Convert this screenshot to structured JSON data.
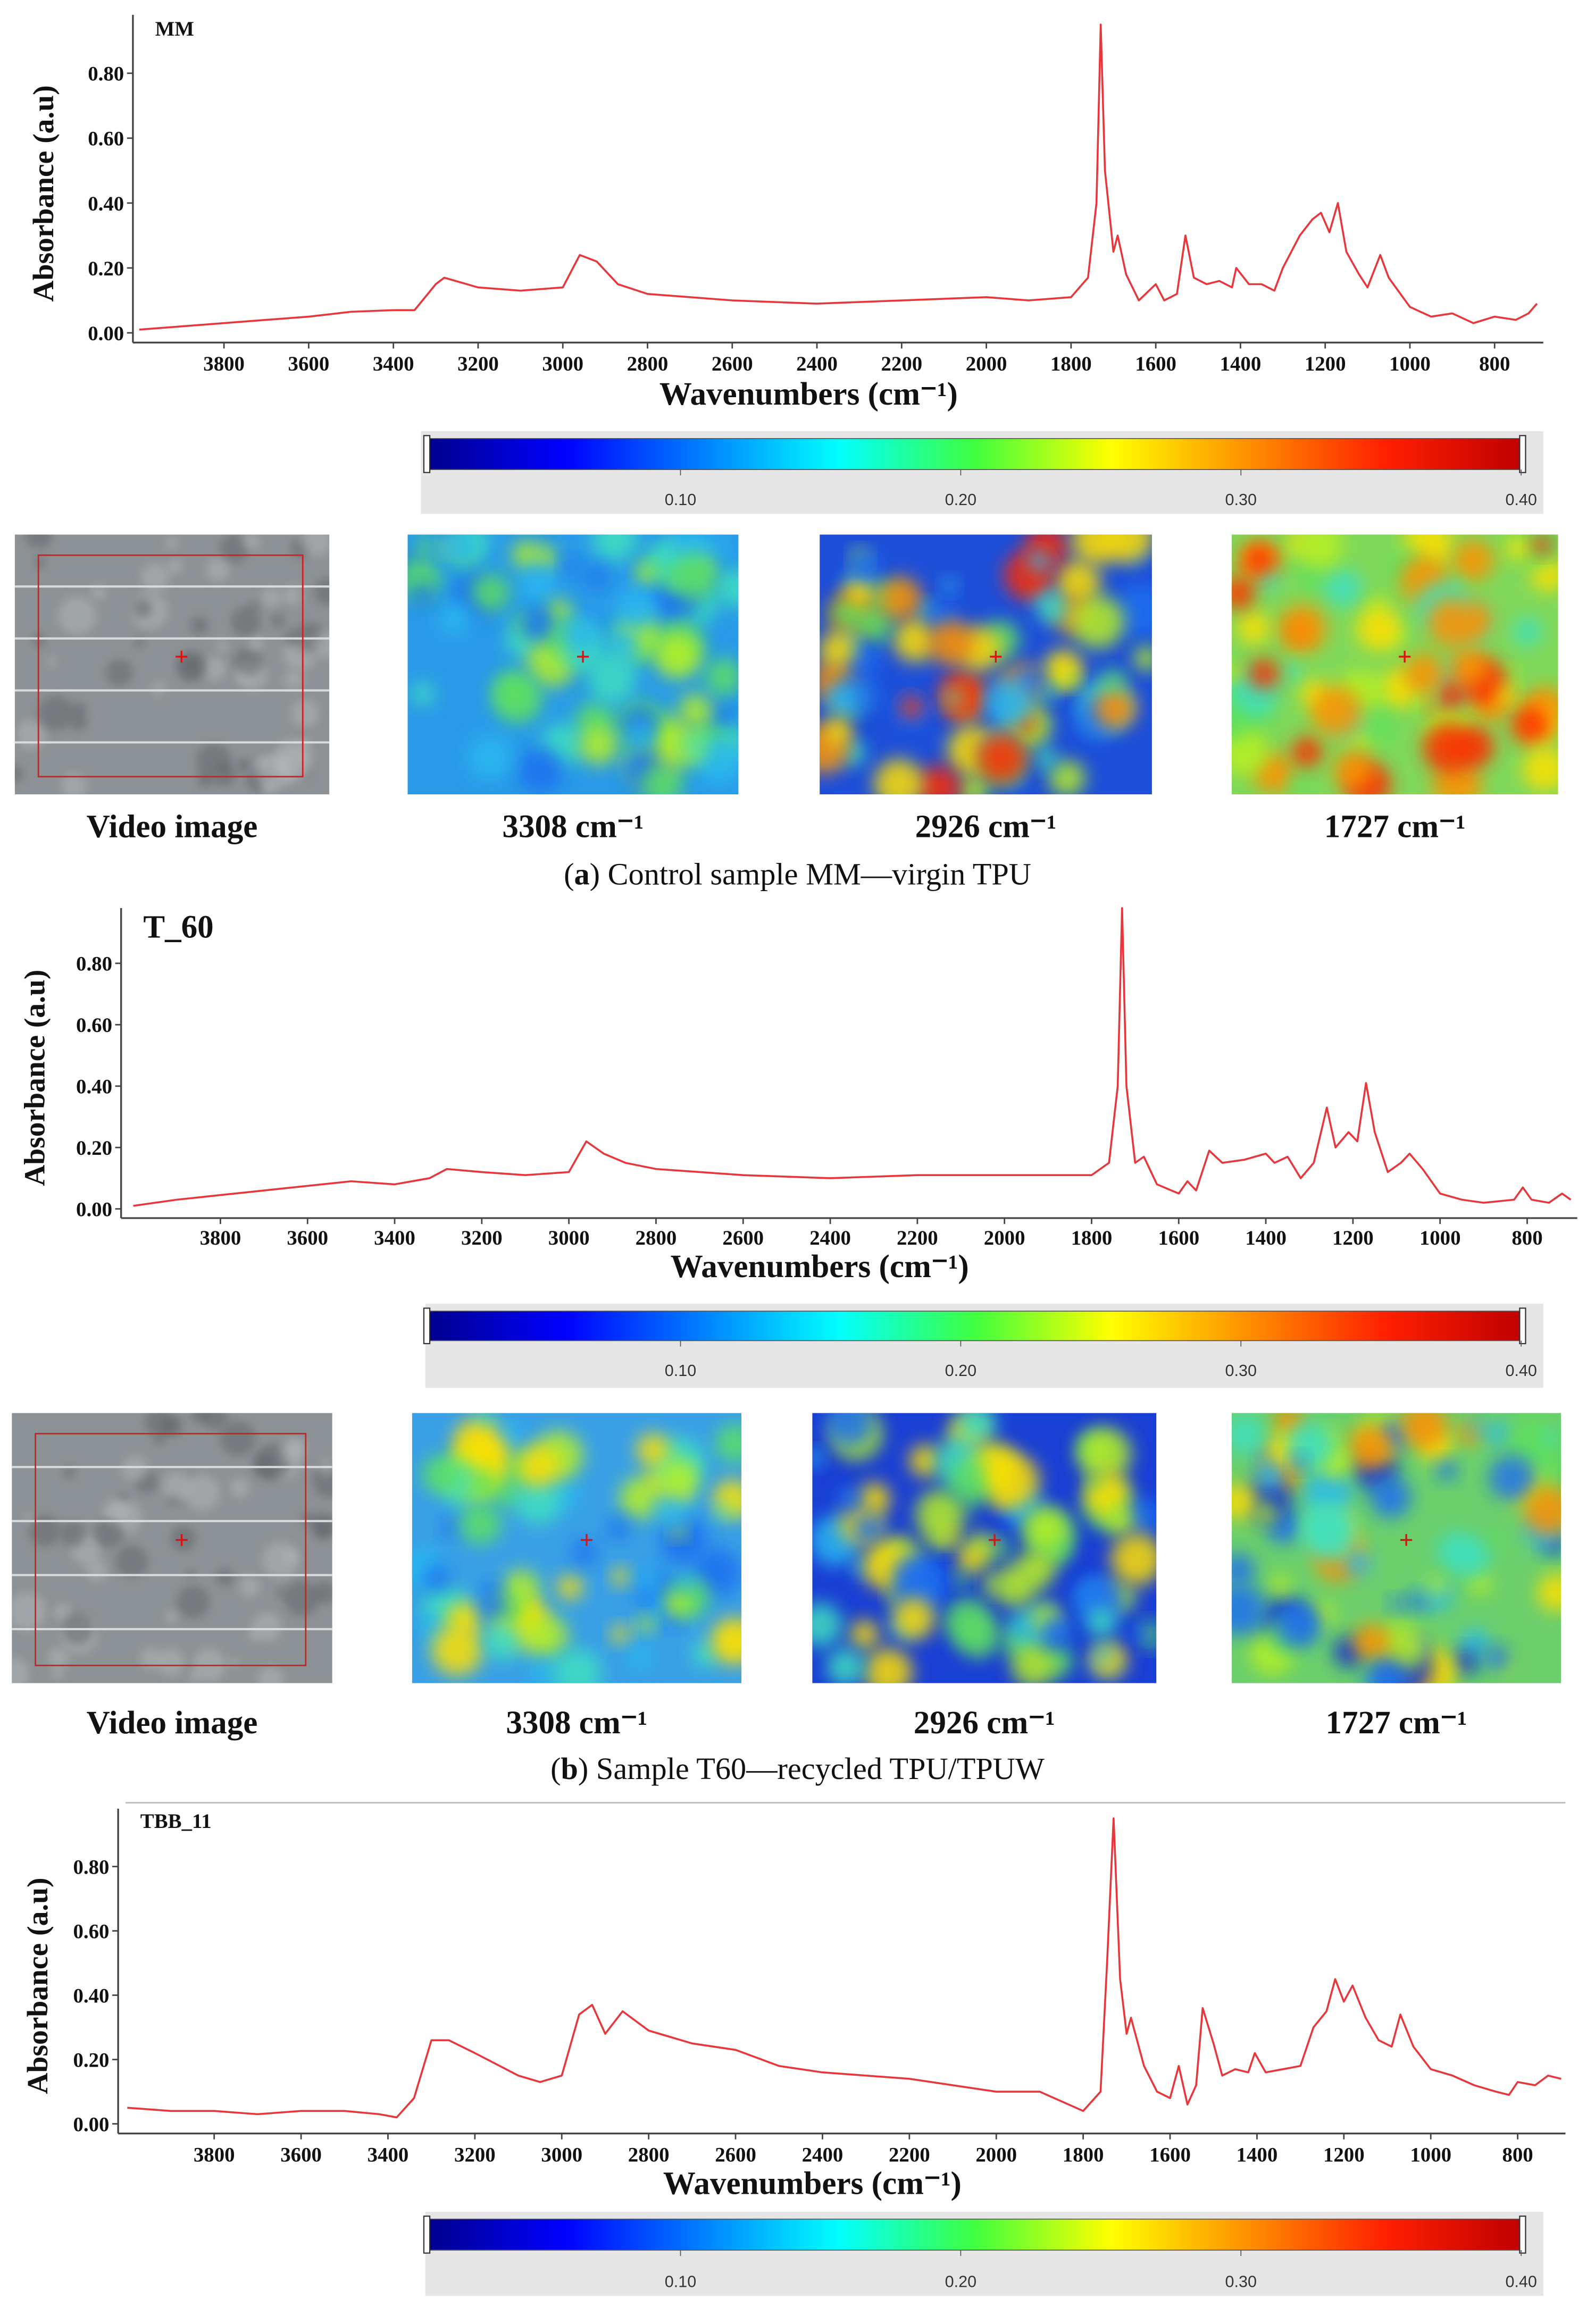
{
  "chart_data": [
    {
      "type": "line",
      "title": "MM",
      "ylabel": "Absorbance (a.u)",
      "xlabel": "Wavenumbers (cm⁻¹)",
      "xlim": [
        4015,
        685
      ],
      "ylim": [
        -0.03,
        0.98
      ],
      "xticks": [
        3800,
        3600,
        3400,
        3200,
        3000,
        2800,
        2600,
        2400,
        2200,
        2000,
        1800,
        1600,
        1400,
        1200,
        1000,
        800
      ],
      "yticks": [
        {
          "value": 0,
          "label": "0.00"
        },
        {
          "value": 0.2,
          "label": "0.20"
        },
        {
          "value": 0.4,
          "label": "0.40"
        },
        {
          "value": 0.6,
          "label": "0.60"
        },
        {
          "value": 0.8,
          "label": "0.80"
        }
      ],
      "series": [
        {
          "color": "#e8363b",
          "x": [
            4000,
            3900,
            3800,
            3700,
            3600,
            3500,
            3400,
            3350,
            3300,
            3280,
            3200,
            3100,
            3000,
            2960,
            2920,
            2870,
            2800,
            2600,
            2400,
            2200,
            2000,
            1900,
            1800,
            1760,
            1740,
            1730,
            1720,
            1700,
            1690,
            1670,
            1640,
            1600,
            1580,
            1550,
            1530,
            1510,
            1480,
            1450,
            1420,
            1410,
            1380,
            1350,
            1320,
            1300,
            1260,
            1230,
            1210,
            1190,
            1170,
            1150,
            1120,
            1100,
            1070,
            1050,
            1000,
            950,
            900,
            850,
            800,
            750,
            720,
            700
          ],
          "values": [
            0.01,
            0.02,
            0.03,
            0.04,
            0.05,
            0.065,
            0.07,
            0.07,
            0.15,
            0.17,
            0.14,
            0.13,
            0.14,
            0.24,
            0.22,
            0.15,
            0.12,
            0.1,
            0.09,
            0.1,
            0.11,
            0.1,
            0.11,
            0.17,
            0.4,
            0.95,
            0.5,
            0.25,
            0.3,
            0.18,
            0.1,
            0.15,
            0.1,
            0.12,
            0.3,
            0.17,
            0.15,
            0.16,
            0.14,
            0.2,
            0.15,
            0.15,
            0.13,
            0.2,
            0.3,
            0.35,
            0.37,
            0.31,
            0.4,
            0.25,
            0.18,
            0.14,
            0.24,
            0.17,
            0.08,
            0.05,
            0.06,
            0.03,
            0.05,
            0.04,
            0.06,
            0.09
          ]
        }
      ],
      "colorbar": {
        "lim": [
          0.01,
          0.4
        ],
        "ticks": [
          {
            "value": 0.1,
            "label": "0.10"
          },
          {
            "value": 0.2,
            "label": "0.20"
          },
          {
            "value": 0.3,
            "label": "0.30"
          },
          {
            "value": 0.4,
            "label": "0.40"
          }
        ]
      },
      "panels": {
        "captions": [
          "Video image",
          "3308 cm⁻¹",
          "2926 cm⁻¹",
          "1727 cm⁻¹"
        ],
        "subcaption": [
          "(",
          "a",
          ") Control sample MM—virgin TPU"
        ]
      }
    },
    {
      "type": "line",
      "title": "T_60",
      "ylabel": "Absorbance (a.u)",
      "xlabel": "Wavenumbers (cm⁻¹)",
      "xlim": [
        4028,
        685
      ],
      "ylim": [
        -0.03,
        0.98
      ],
      "xticks": [
        3800,
        3600,
        3400,
        3200,
        3000,
        2800,
        2600,
        2400,
        2200,
        2000,
        1800,
        1600,
        1400,
        1200,
        1000,
        800
      ],
      "yticks": [
        {
          "value": 0,
          "label": "0.00"
        },
        {
          "value": 0.2,
          "label": "0.20"
        },
        {
          "value": 0.4,
          "label": "0.40"
        },
        {
          "value": 0.6,
          "label": "0.60"
        },
        {
          "value": 0.8,
          "label": "0.80"
        }
      ],
      "series": [
        {
          "color": "#e8363b",
          "x": [
            4000,
            3900,
            3700,
            3500,
            3400,
            3320,
            3280,
            3200,
            3100,
            3000,
            2960,
            2920,
            2870,
            2800,
            2600,
            2400,
            2200,
            2000,
            1800,
            1760,
            1740,
            1730,
            1720,
            1700,
            1680,
            1650,
            1600,
            1580,
            1560,
            1530,
            1500,
            1450,
            1400,
            1380,
            1350,
            1320,
            1290,
            1260,
            1240,
            1210,
            1190,
            1170,
            1150,
            1120,
            1090,
            1070,
            1040,
            1000,
            950,
            900,
            830,
            810,
            790,
            750,
            720,
            700
          ],
          "values": [
            0.01,
            0.03,
            0.06,
            0.09,
            0.08,
            0.1,
            0.13,
            0.12,
            0.11,
            0.12,
            0.22,
            0.18,
            0.15,
            0.13,
            0.11,
            0.1,
            0.11,
            0.11,
            0.11,
            0.15,
            0.4,
            0.98,
            0.4,
            0.15,
            0.17,
            0.08,
            0.05,
            0.09,
            0.06,
            0.19,
            0.15,
            0.16,
            0.18,
            0.15,
            0.17,
            0.1,
            0.15,
            0.33,
            0.2,
            0.25,
            0.22,
            0.41,
            0.25,
            0.12,
            0.15,
            0.18,
            0.13,
            0.05,
            0.03,
            0.02,
            0.03,
            0.07,
            0.03,
            0.02,
            0.05,
            0.03
          ]
        }
      ],
      "colorbar": {
        "lim": [
          0.01,
          0.4
        ],
        "ticks": [
          {
            "value": 0.1,
            "label": "0.10"
          },
          {
            "value": 0.2,
            "label": "0.20"
          },
          {
            "value": 0.3,
            "label": "0.30"
          },
          {
            "value": 0.4,
            "label": "0.40"
          }
        ]
      },
      "panels": {
        "captions": [
          "Video image",
          "3308 cm⁻¹",
          "2926 cm⁻¹",
          "1727 cm⁻¹"
        ],
        "subcaption": [
          "(",
          "b",
          ") Sample T60—recycled TPU/TPUW"
        ]
      }
    },
    {
      "type": "line",
      "title": "TBB_11",
      "ylabel": "Absorbance (a.u)",
      "xlabel": "Wavenumbers (cm⁻¹)",
      "xlim": [
        4021,
        690
      ],
      "ylim": [
        -0.03,
        0.98
      ],
      "xticks": [
        3800,
        3600,
        3400,
        3200,
        3000,
        2800,
        2600,
        2400,
        2200,
        2000,
        1800,
        1600,
        1400,
        1200,
        1000,
        800
      ],
      "yticks": [
        {
          "value": 0,
          "label": "0.00"
        },
        {
          "value": 0.2,
          "label": "0.20"
        },
        {
          "value": 0.4,
          "label": "0.40"
        },
        {
          "value": 0.6,
          "label": "0.60"
        },
        {
          "value": 0.8,
          "label": "0.80"
        }
      ],
      "series": [
        {
          "color": "#e8363b",
          "x": [
            4000,
            3900,
            3800,
            3700,
            3600,
            3500,
            3420,
            3380,
            3340,
            3300,
            3260,
            3200,
            3100,
            3050,
            3000,
            2960,
            2930,
            2900,
            2860,
            2800,
            2700,
            2600,
            2500,
            2400,
            2200,
            2000,
            1900,
            1800,
            1760,
            1745,
            1730,
            1715,
            1700,
            1690,
            1660,
            1630,
            1600,
            1580,
            1560,
            1540,
            1525,
            1500,
            1480,
            1450,
            1420,
            1405,
            1380,
            1340,
            1300,
            1270,
            1240,
            1220,
            1200,
            1180,
            1150,
            1120,
            1090,
            1070,
            1040,
            1000,
            950,
            900,
            850,
            820,
            800,
            760,
            730,
            700
          ],
          "values": [
            0.05,
            0.04,
            0.04,
            0.03,
            0.04,
            0.04,
            0.03,
            0.02,
            0.08,
            0.26,
            0.26,
            0.22,
            0.15,
            0.13,
            0.15,
            0.34,
            0.37,
            0.28,
            0.35,
            0.29,
            0.25,
            0.23,
            0.18,
            0.16,
            0.14,
            0.1,
            0.1,
            0.04,
            0.1,
            0.5,
            0.95,
            0.45,
            0.28,
            0.33,
            0.18,
            0.1,
            0.08,
            0.18,
            0.06,
            0.12,
            0.36,
            0.25,
            0.15,
            0.17,
            0.16,
            0.22,
            0.16,
            0.17,
            0.18,
            0.3,
            0.35,
            0.45,
            0.38,
            0.43,
            0.33,
            0.26,
            0.24,
            0.34,
            0.24,
            0.17,
            0.15,
            0.12,
            0.1,
            0.09,
            0.13,
            0.12,
            0.15,
            0.14
          ]
        }
      ],
      "colorbar": {
        "lim": [
          0.01,
          0.4
        ],
        "ticks": [
          {
            "value": 0.1,
            "label": "0.10"
          },
          {
            "value": 0.2,
            "label": "0.20"
          },
          {
            "value": 0.3,
            "label": "0.30"
          },
          {
            "value": 0.4,
            "label": "0.40"
          }
        ]
      }
    }
  ]
}
